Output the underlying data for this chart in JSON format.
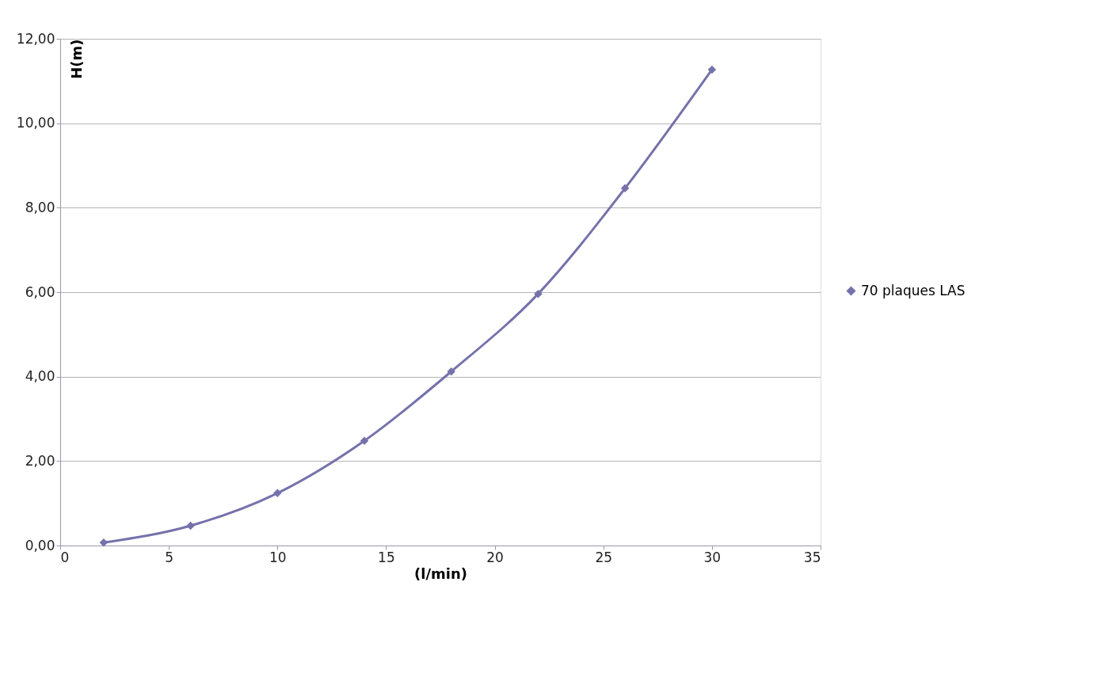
{
  "chart_data": {
    "type": "line",
    "xlabel": "(l/min)",
    "ylabel": "H(m)",
    "x": [
      2,
      6,
      10,
      14,
      18,
      22,
      26,
      30
    ],
    "series": [
      {
        "name": "70 plaques LAS",
        "color": "#7572ab",
        "values": [
          0.07,
          0.47,
          1.24,
          2.48,
          4.12,
          5.96,
          8.46,
          11.27
        ]
      }
    ],
    "xlim": [
      0,
      35
    ],
    "xticks": [
      0,
      5,
      10,
      15,
      20,
      25,
      30,
      35
    ],
    "ylim": [
      0,
      12
    ],
    "yticks": [
      {
        "value": 0,
        "label": "0,00"
      },
      {
        "value": 2,
        "label": "2,00"
      },
      {
        "value": 4,
        "label": "4,00"
      },
      {
        "value": 6,
        "label": "6,00"
      },
      {
        "value": 8,
        "label": "8,00"
      },
      {
        "value": 10,
        "label": "10,00"
      },
      {
        "value": 12,
        "label": "12,00"
      }
    ],
    "grid": "y",
    "legend": "right",
    "marker": "diamond",
    "line_style": "solid"
  }
}
